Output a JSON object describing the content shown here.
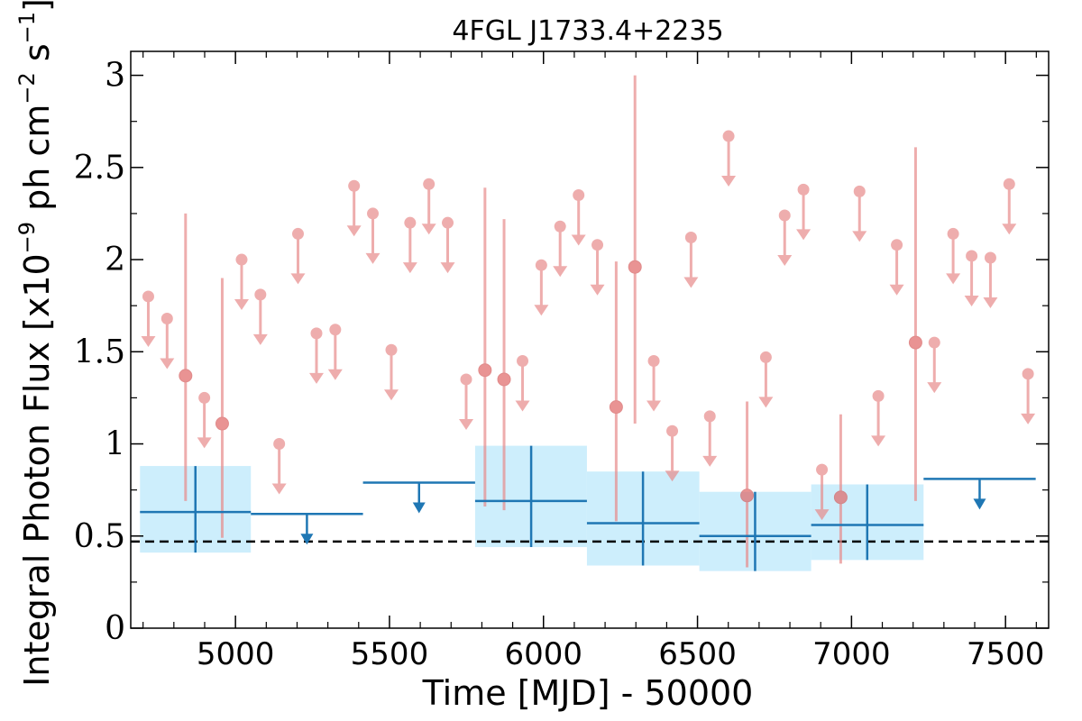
{
  "chart_data": {
    "type": "scatter",
    "title": "4FGL J1733.4+2235",
    "xlabel": "Time [MJD] - 50000",
    "ylabel": "Integral Photon Flux [x10^{-9} ph cm^{-2} s^{-1}]",
    "ylabel_parts": {
      "base": "Integral Photon Flux [x10",
      "exp1": "−9",
      "mid": " ph cm",
      "exp2": "−2",
      "mid2": " s",
      "exp3": "−1",
      "end": "]"
    },
    "xlim": [
      4660,
      7640
    ],
    "ylim": [
      0,
      3.13
    ],
    "xticks": [
      5000,
      5500,
      6000,
      6500,
      7000,
      7500
    ],
    "xtick_labels": [
      "5000",
      "5500",
      "6000",
      "6500",
      "7000",
      "7500"
    ],
    "yticks": [
      0,
      0.5,
      1,
      1.5,
      2,
      2.5,
      3
    ],
    "ytick_labels": [
      "0",
      "0.5",
      "1",
      "1.5",
      "2",
      "2.5",
      "3"
    ],
    "reference_line": {
      "y": 0.47,
      "style": "dashed",
      "color": "#000000"
    },
    "colors": {
      "short_bin": "#e88b8b",
      "long_bin": "#1f77b4",
      "long_bin_band": "#cdeefc",
      "reference": "#000000"
    },
    "series": [
      {
        "kind": "short-bins-detections",
        "points": [
          {
            "x": 4838,
            "y": 1.37,
            "ylo": 0.69,
            "yhi": 2.25
          },
          {
            "x": 4957,
            "y": 1.11,
            "ylo": 0.49,
            "yhi": 1.9
          },
          {
            "x": 5810,
            "y": 1.4,
            "ylo": 0.66,
            "yhi": 2.39
          },
          {
            "x": 5872,
            "y": 1.35,
            "ylo": 0.64,
            "yhi": 2.22
          },
          {
            "x": 6236,
            "y": 1.2,
            "ylo": 0.58,
            "yhi": 1.99
          },
          {
            "x": 6297,
            "y": 1.96,
            "ylo": 1.11,
            "yhi": 3.0
          },
          {
            "x": 6661,
            "y": 0.72,
            "ylo": 0.33,
            "yhi": 1.23
          },
          {
            "x": 6965,
            "y": 0.71,
            "ylo": 0.35,
            "yhi": 1.16
          },
          {
            "x": 7208,
            "y": 1.55,
            "ylo": 0.69,
            "yhi": 2.61
          }
        ]
      },
      {
        "kind": "short-bins-upper-limits",
        "points": [
          {
            "x": 4717,
            "y": 1.8
          },
          {
            "x": 4778,
            "y": 1.68
          },
          {
            "x": 4899,
            "y": 1.25
          },
          {
            "x": 5020,
            "y": 2.0
          },
          {
            "x": 5081,
            "y": 1.81
          },
          {
            "x": 5142,
            "y": 1.0
          },
          {
            "x": 5203,
            "y": 2.14
          },
          {
            "x": 5263,
            "y": 1.6
          },
          {
            "x": 5324,
            "y": 1.62
          },
          {
            "x": 5385,
            "y": 2.4
          },
          {
            "x": 5446,
            "y": 2.25
          },
          {
            "x": 5506,
            "y": 1.51
          },
          {
            "x": 5567,
            "y": 2.2
          },
          {
            "x": 5628,
            "y": 2.41
          },
          {
            "x": 5689,
            "y": 2.2
          },
          {
            "x": 5749,
            "y": 1.35
          },
          {
            "x": 5932,
            "y": 1.45
          },
          {
            "x": 5993,
            "y": 1.97
          },
          {
            "x": 6054,
            "y": 2.18
          },
          {
            "x": 6114,
            "y": 2.35
          },
          {
            "x": 6175,
            "y": 2.08
          },
          {
            "x": 6358,
            "y": 1.45
          },
          {
            "x": 6418,
            "y": 1.07
          },
          {
            "x": 6479,
            "y": 2.12
          },
          {
            "x": 6540,
            "y": 1.15
          },
          {
            "x": 6601,
            "y": 2.67
          },
          {
            "x": 6722,
            "y": 1.47
          },
          {
            "x": 6783,
            "y": 2.24
          },
          {
            "x": 6844,
            "y": 2.38
          },
          {
            "x": 6904,
            "y": 0.86
          },
          {
            "x": 7026,
            "y": 2.37
          },
          {
            "x": 7087,
            "y": 1.26
          },
          {
            "x": 7147,
            "y": 2.08
          },
          {
            "x": 7269,
            "y": 1.55
          },
          {
            "x": 7330,
            "y": 2.14
          },
          {
            "x": 7390,
            "y": 2.02
          },
          {
            "x": 7451,
            "y": 2.01
          },
          {
            "x": 7512,
            "y": 2.41
          },
          {
            "x": 7573,
            "y": 1.38
          }
        ]
      },
      {
        "kind": "long-bins-detections",
        "points": [
          {
            "x0": 4690,
            "x1": 5050,
            "xc": 4870,
            "y": 0.63,
            "ylo": 0.41,
            "yhi": 0.88
          },
          {
            "x0": 5778,
            "x1": 6141,
            "xc": 5960,
            "y": 0.69,
            "ylo": 0.44,
            "yhi": 0.99
          },
          {
            "x0": 6141,
            "x1": 6506,
            "xc": 6323,
            "y": 0.57,
            "ylo": 0.34,
            "yhi": 0.85
          },
          {
            "x0": 6506,
            "x1": 6869,
            "xc": 6687,
            "y": 0.5,
            "ylo": 0.31,
            "yhi": 0.74
          },
          {
            "x0": 6869,
            "x1": 7234,
            "xc": 7051,
            "y": 0.56,
            "ylo": 0.37,
            "yhi": 0.78
          }
        ]
      },
      {
        "kind": "long-bins-upper-limits",
        "points": [
          {
            "x0": 5050,
            "x1": 5414,
            "xc": 5232,
            "y": 0.62
          },
          {
            "x0": 5414,
            "x1": 5778,
            "xc": 5596,
            "y": 0.79
          },
          {
            "x0": 7234,
            "x1": 7598,
            "xc": 7416,
            "y": 0.81
          }
        ]
      }
    ]
  }
}
